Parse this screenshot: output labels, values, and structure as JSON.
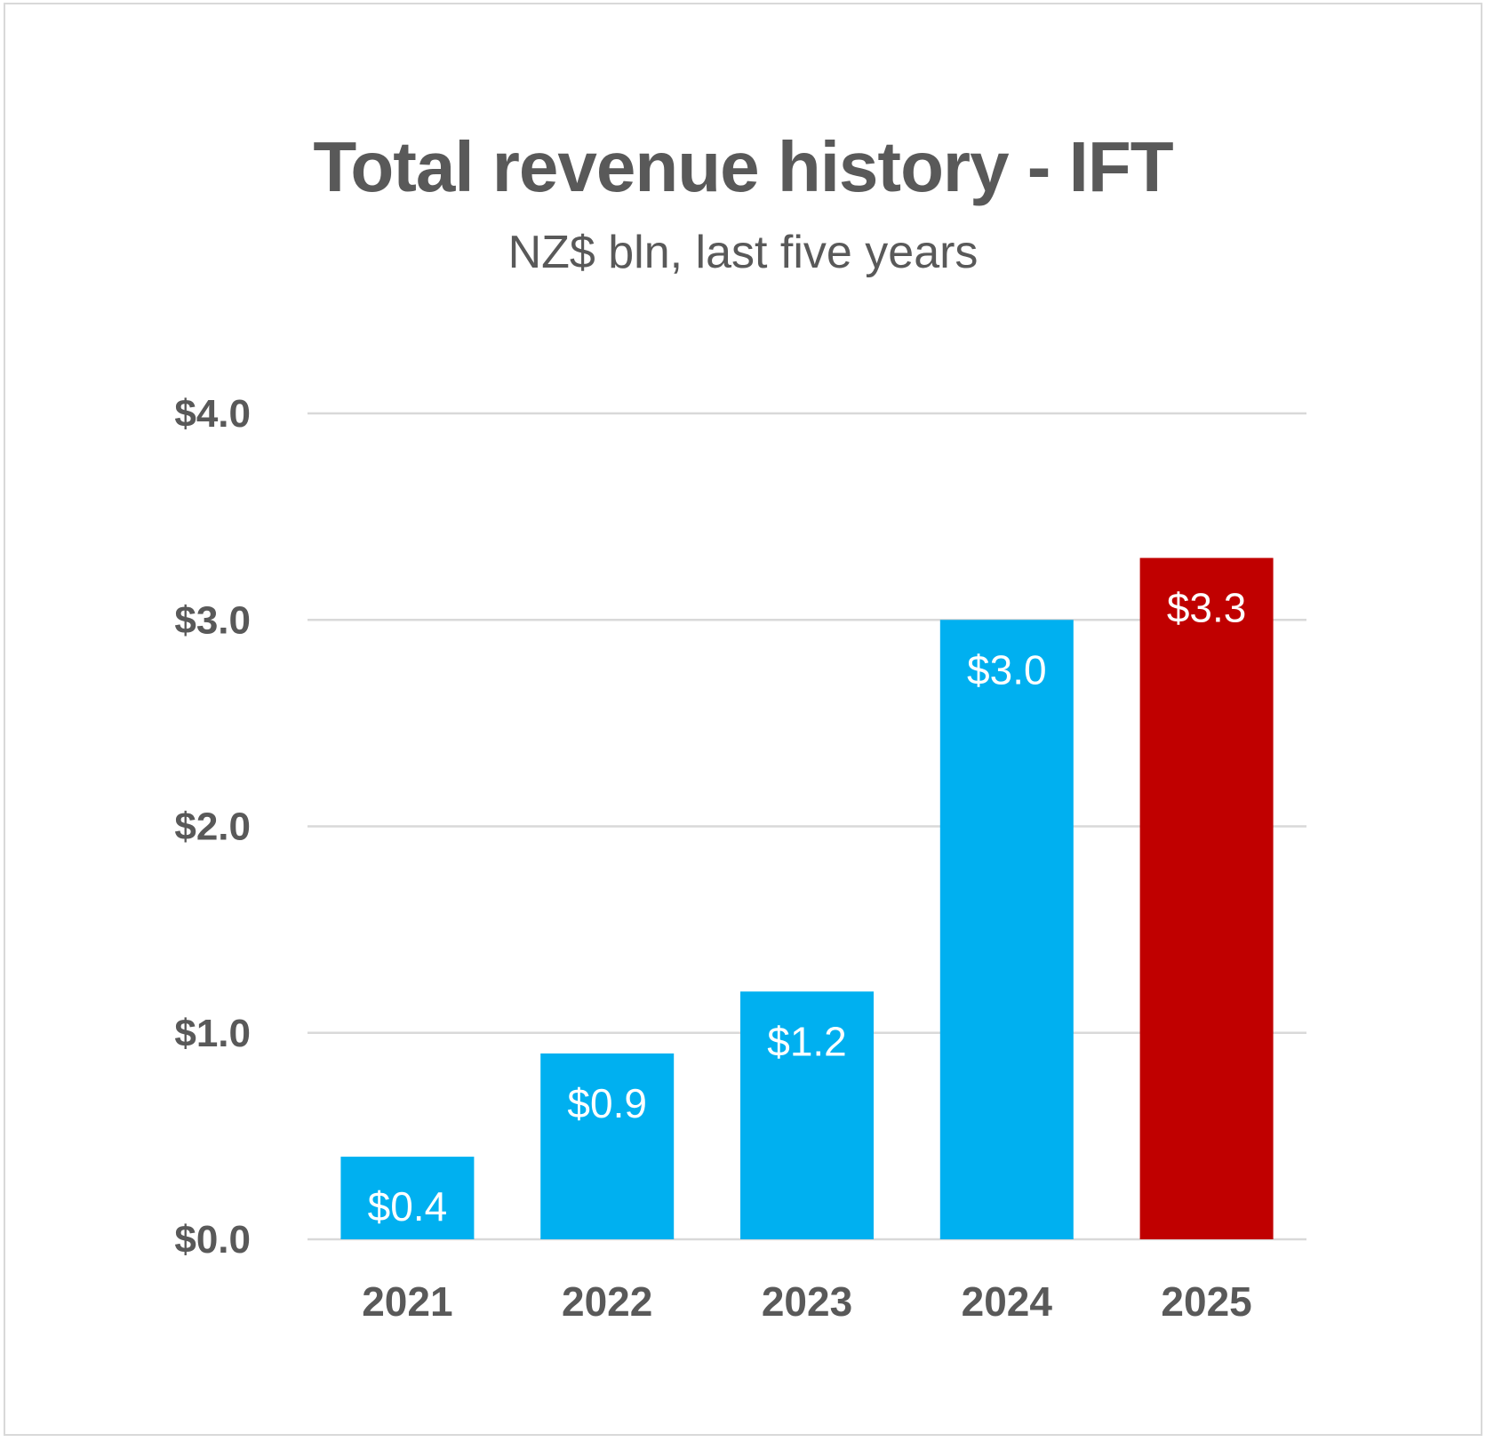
{
  "chart_data": {
    "type": "bar",
    "title": "Total revenue history - IFT",
    "subtitle": "NZ$ bln, last five years",
    "categories": [
      "2021",
      "2022",
      "2023",
      "2024",
      "2025"
    ],
    "values": [
      0.4,
      0.9,
      1.2,
      3.0,
      3.3
    ],
    "data_labels": [
      "$0.4",
      "$0.9",
      "$1.2",
      "$3.0",
      "$3.3"
    ],
    "bar_colors": [
      "#00b0f0",
      "#00b0f0",
      "#00b0f0",
      "#00b0f0",
      "#c00000"
    ],
    "ylim": [
      0,
      4
    ],
    "yticks": [
      0,
      1,
      2,
      3,
      4
    ],
    "ytick_labels": [
      "$0.0",
      "$1.0",
      "$2.0",
      "$3.0",
      "$4.0"
    ],
    "xlabel": "",
    "ylabel": "",
    "grid": true,
    "legend": "none",
    "gridline_color": "#d9d9d9",
    "text_color": "#595959"
  }
}
